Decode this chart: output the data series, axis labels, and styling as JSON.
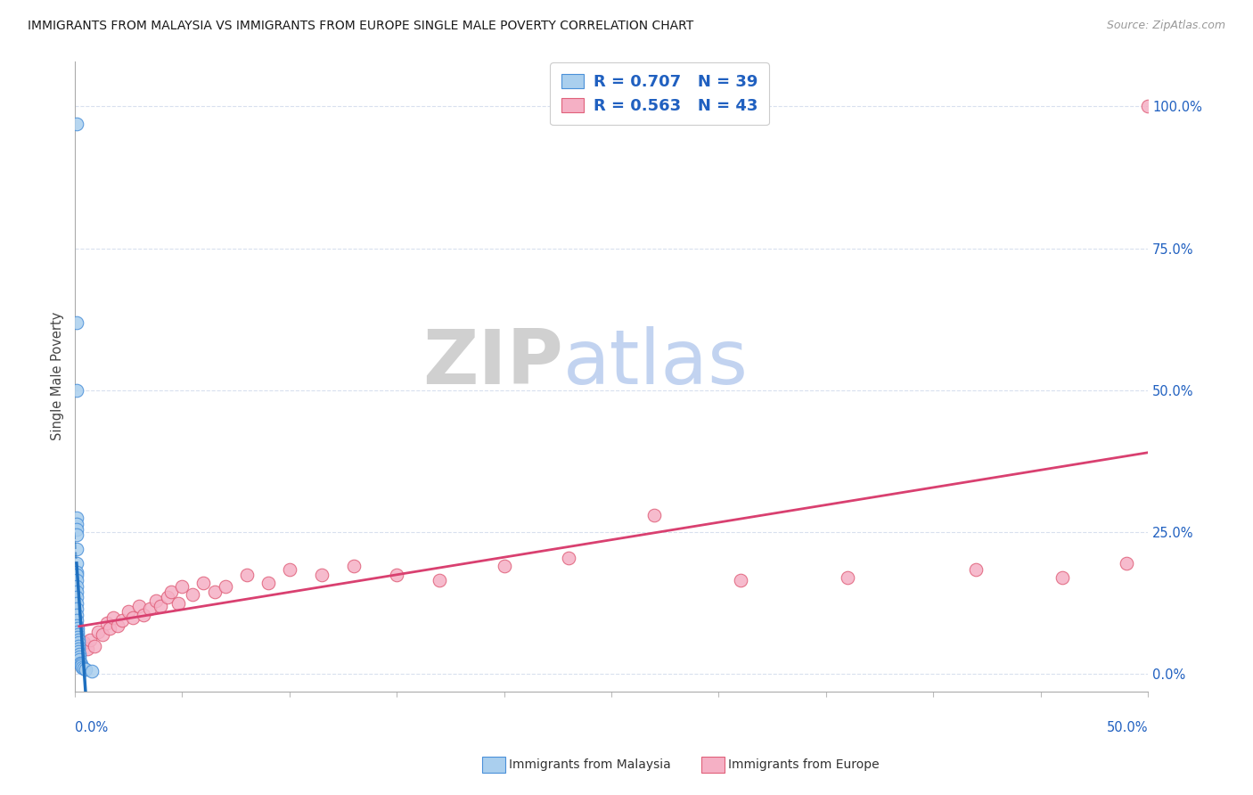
{
  "title": "IMMIGRANTS FROM MALAYSIA VS IMMIGRANTS FROM EUROPE SINGLE MALE POVERTY CORRELATION CHART",
  "source": "Source: ZipAtlas.com",
  "ylabel": "Single Male Poverty",
  "right_ytick_labels": [
    "0.0%",
    "25.0%",
    "50.0%",
    "75.0%",
    "100.0%"
  ],
  "right_ytick_pos": [
    0.0,
    0.25,
    0.5,
    0.75,
    1.0
  ],
  "xlim": [
    0.0,
    0.5
  ],
  "ylim": [
    -0.03,
    1.08
  ],
  "series1_label": "Immigrants from Malaysia",
  "series2_label": "Immigrants from Europe",
  "series1_face": "#aacfee",
  "series2_face": "#f5b0c5",
  "series1_edge": "#4a90d9",
  "series2_edge": "#e0607a",
  "series1_line": "#1e6fbf",
  "series2_line": "#d94070",
  "series1_R": 0.707,
  "series1_N": 39,
  "series2_R": 0.563,
  "series2_N": 43,
  "legend_val_color": "#2060c0",
  "grid_color": "#d8e0ee",
  "title_color": "#1a1a1a",
  "source_color": "#999999",
  "axis_tick_color": "#2060c0",
  "watermark_ZIP_color": "#c8c8c8",
  "watermark_atlas_color": "#b8ccee",
  "malaysia_x": [
    0.0008,
    0.0008,
    0.0008,
    0.0008,
    0.0008,
    0.0008,
    0.0008,
    0.0008,
    0.0008,
    0.0008,
    0.001,
    0.001,
    0.001,
    0.001,
    0.001,
    0.001,
    0.001,
    0.001,
    0.001,
    0.001,
    0.0012,
    0.0012,
    0.0012,
    0.0012,
    0.0015,
    0.0015,
    0.0015,
    0.0018,
    0.0018,
    0.002,
    0.002,
    0.0022,
    0.0025,
    0.0028,
    0.003,
    0.0035,
    0.004,
    0.005,
    0.008
  ],
  "malaysia_y": [
    0.97,
    0.62,
    0.5,
    0.275,
    0.265,
    0.255,
    0.245,
    0.22,
    0.195,
    0.18,
    0.175,
    0.165,
    0.155,
    0.145,
    0.135,
    0.125,
    0.115,
    0.105,
    0.095,
    0.085,
    0.08,
    0.075,
    0.07,
    0.065,
    0.06,
    0.055,
    0.05,
    0.045,
    0.04,
    0.035,
    0.03,
    0.025,
    0.02,
    0.018,
    0.015,
    0.012,
    0.01,
    0.008,
    0.005
  ],
  "europe_x": [
    0.002,
    0.004,
    0.006,
    0.007,
    0.009,
    0.011,
    0.013,
    0.015,
    0.016,
    0.018,
    0.02,
    0.022,
    0.025,
    0.027,
    0.03,
    0.032,
    0.035,
    0.038,
    0.04,
    0.043,
    0.045,
    0.048,
    0.05,
    0.055,
    0.06,
    0.065,
    0.07,
    0.08,
    0.09,
    0.1,
    0.115,
    0.13,
    0.15,
    0.17,
    0.2,
    0.23,
    0.27,
    0.31,
    0.36,
    0.42,
    0.46,
    0.49,
    0.5
  ],
  "europe_y": [
    0.02,
    0.055,
    0.045,
    0.06,
    0.05,
    0.075,
    0.07,
    0.09,
    0.08,
    0.1,
    0.085,
    0.095,
    0.11,
    0.1,
    0.12,
    0.105,
    0.115,
    0.13,
    0.12,
    0.135,
    0.145,
    0.125,
    0.155,
    0.14,
    0.16,
    0.145,
    0.155,
    0.175,
    0.16,
    0.185,
    0.175,
    0.19,
    0.175,
    0.165,
    0.19,
    0.205,
    0.28,
    0.165,
    0.17,
    0.185,
    0.17,
    0.195,
    1.0
  ]
}
